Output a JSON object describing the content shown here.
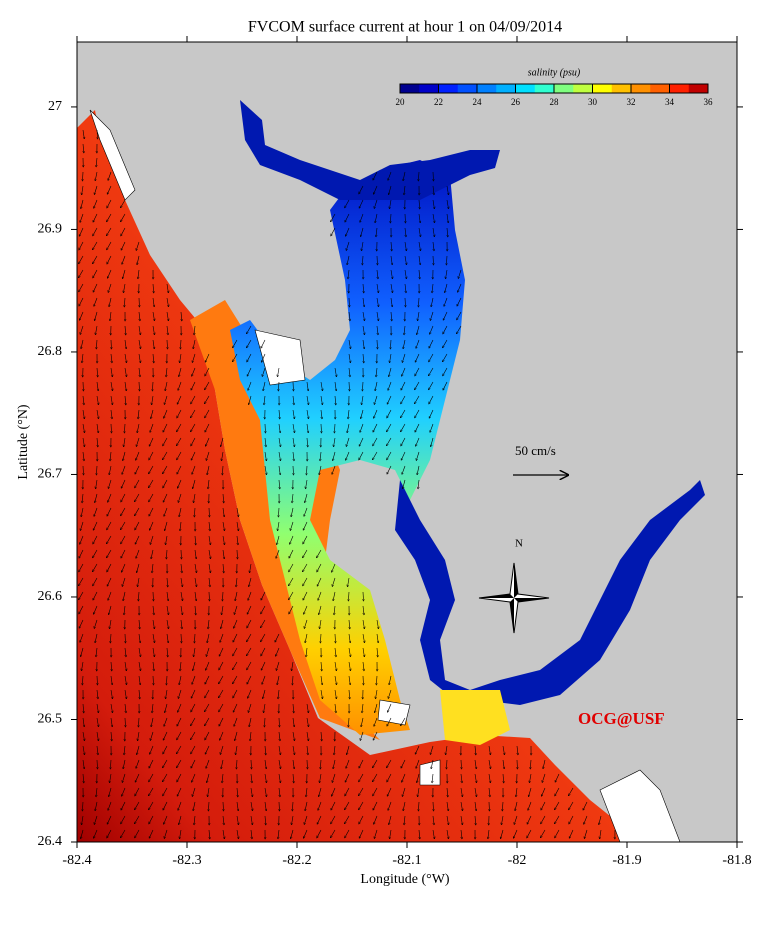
{
  "title": "FVCOM surface current at hour 1 on 04/09/2014",
  "x_label": "Longitude (°W)",
  "y_label": "Latitude (°N)",
  "xlim": [
    -82.4,
    -81.8
  ],
  "ylim": [
    26.4,
    27.053
  ],
  "xticks": [
    -82.4,
    -82.3,
    -82.2,
    -82.1,
    -82,
    -81.9,
    -81.8
  ],
  "yticks": [
    26.4,
    26.5,
    26.6,
    26.7,
    26.8,
    26.9,
    27
  ],
  "colorbar": {
    "label": "salinity (psu)",
    "lim": [
      20,
      36
    ],
    "ticks": [
      20,
      22,
      24,
      26,
      28,
      30,
      32,
      34,
      36
    ],
    "colors": [
      "#00008f",
      "#0000c8",
      "#0020ff",
      "#0050ff",
      "#0080ff",
      "#00b0ff",
      "#00e0ff",
      "#30ffd0",
      "#80ff80",
      "#c0ff40",
      "#ffff00",
      "#ffc000",
      "#ff9000",
      "#ff6000",
      "#ff2000",
      "#c00000"
    ]
  },
  "scale_arrow": "50 cm/s",
  "north": "N",
  "credit": "OCG@USF"
}
